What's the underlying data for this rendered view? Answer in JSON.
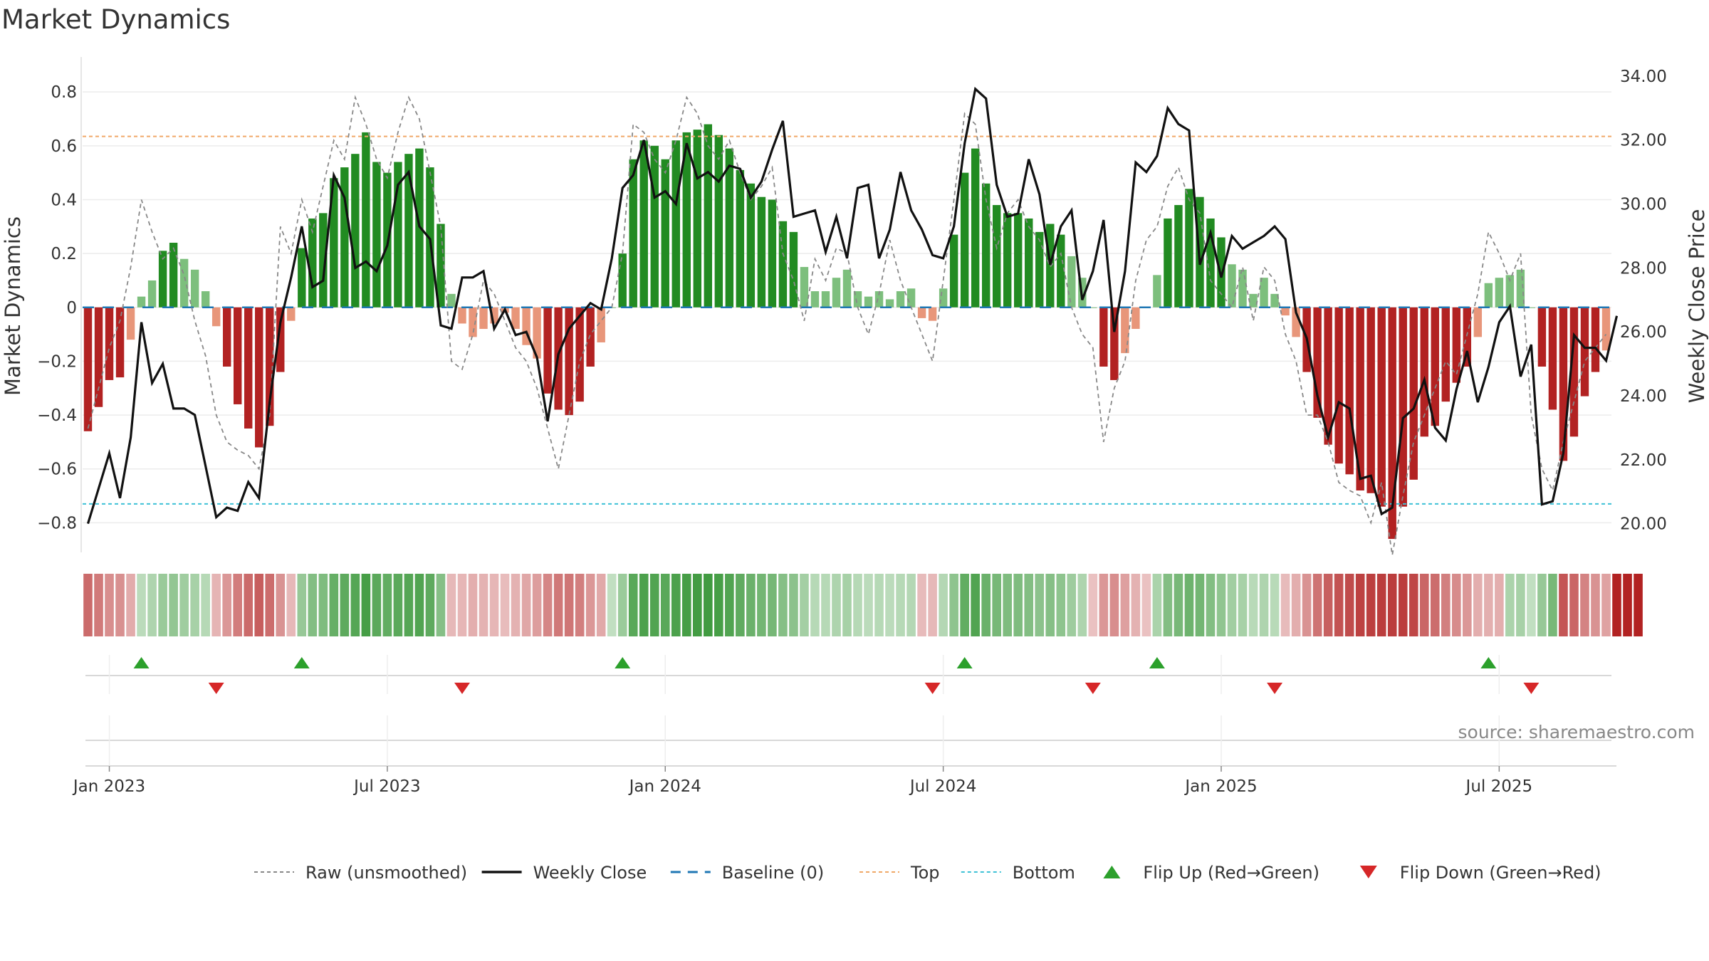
{
  "title": "Market Dynamics",
  "source": "source: sharemaestro.com",
  "colors": {
    "green_strong": "#228b22",
    "green_light": "#7dbf7d",
    "red_strong": "#b22222",
    "red_light": "#e8967a",
    "raw_line": "#888888",
    "close_line": "#111111",
    "baseline": "#1f77b4",
    "top_line": "#f0a868",
    "bottom_line": "#3fc1d6",
    "flip_up": "#2ca02c",
    "flip_down": "#d62728"
  },
  "chart_data": {
    "type": "bar",
    "title": "Market Dynamics",
    "ylabel": "Market Dynamics",
    "y2label": "Weekly Close Price",
    "ylim": [
      -0.91,
      0.93
    ],
    "y2lim": [
      19.1,
      34.6
    ],
    "yticks": [
      "0.8",
      "0.6",
      "0.4",
      "0.2",
      "0",
      "−0.2",
      "−0.4",
      "−0.6",
      "−0.8"
    ],
    "ytick_values": [
      0.8,
      0.6,
      0.4,
      0.2,
      0,
      -0.2,
      -0.4,
      -0.6,
      -0.8
    ],
    "y2ticks": [
      "34.00",
      "32.00",
      "30.00",
      "28.00",
      "26.00",
      "24.00",
      "22.00",
      "20.00"
    ],
    "y2tick_values": [
      34,
      32,
      30,
      28,
      26,
      24,
      22,
      20
    ],
    "xticks": [
      "Jan 2023",
      "Jul 2023",
      "Jan 2024",
      "Jul 2024",
      "Jan 2025",
      "Jul 2025"
    ],
    "xtick_weeks": [
      2,
      28,
      54,
      80,
      106,
      132
    ],
    "start_date": "2023-01-01",
    "end_date": "2025-09-07",
    "top_threshold": 0.635,
    "bottom_threshold": -0.73,
    "baseline": 0,
    "grid": true,
    "legend_position": "bottom",
    "legend": [
      "Raw (unsmoothed)",
      "Weekly Close",
      "Baseline (0)",
      "Top",
      "Bottom",
      "Flip Up (Red→Green)",
      "Flip Down (Green→Red)"
    ],
    "smoothed": [
      -0.46,
      -0.37,
      -0.27,
      -0.26,
      -0.12,
      0.04,
      0.1,
      0.21,
      0.24,
      0.18,
      0.14,
      0.06,
      -0.07,
      -0.22,
      -0.36,
      -0.45,
      -0.52,
      -0.44,
      -0.24,
      -0.05,
      0.22,
      0.33,
      0.35,
      0.48,
      0.52,
      0.57,
      0.65,
      0.54,
      0.5,
      0.54,
      0.57,
      0.59,
      0.52,
      0.31,
      0.05,
      -0.06,
      -0.11,
      -0.08,
      -0.06,
      -0.02,
      -0.08,
      -0.14,
      -0.19,
      -0.32,
      -0.38,
      -0.4,
      -0.35,
      -0.22,
      -0.13,
      0.0,
      0.2,
      0.55,
      0.62,
      0.6,
      0.55,
      0.62,
      0.65,
      0.66,
      0.68,
      0.64,
      0.59,
      0.51,
      0.46,
      0.41,
      0.4,
      0.32,
      0.28,
      0.15,
      0.06,
      0.06,
      0.11,
      0.14,
      0.06,
      0.04,
      0.06,
      0.03,
      0.06,
      0.07,
      -0.04,
      -0.05,
      0.07,
      0.27,
      0.5,
      0.59,
      0.46,
      0.38,
      0.35,
      0.35,
      0.33,
      0.28,
      0.31,
      0.27,
      0.19,
      0.11,
      0.0,
      -0.22,
      -0.27,
      -0.17,
      -0.08,
      0.0,
      0.12,
      0.33,
      0.38,
      0.44,
      0.41,
      0.33,
      0.26,
      0.16,
      0.14,
      0.05,
      0.11,
      0.05,
      -0.03,
      -0.11,
      -0.24,
      -0.41,
      -0.51,
      -0.58,
      -0.62,
      -0.68,
      -0.69,
      -0.74,
      -0.86,
      -0.74,
      -0.64,
      -0.48,
      -0.44,
      -0.35,
      -0.28,
      -0.22,
      -0.11,
      0.09,
      0.11,
      0.12,
      0.14,
      0.0,
      -0.22,
      -0.38,
      -0.57,
      -0.48,
      -0.33,
      -0.24,
      -0.16
    ],
    "raw": [
      -0.45,
      -0.3,
      -0.15,
      -0.05,
      0.15,
      0.4,
      0.28,
      0.18,
      0.22,
      0.12,
      -0.05,
      -0.18,
      -0.4,
      -0.5,
      -0.53,
      -0.55,
      -0.6,
      -0.4,
      0.3,
      0.2,
      0.4,
      0.28,
      0.45,
      0.62,
      0.55,
      0.78,
      0.68,
      0.55,
      0.48,
      0.65,
      0.78,
      0.7,
      0.5,
      0.3,
      -0.2,
      -0.23,
      -0.1,
      0.1,
      0.05,
      -0.05,
      -0.15,
      -0.2,
      -0.3,
      -0.45,
      -0.6,
      -0.4,
      -0.2,
      -0.1,
      -0.05,
      0.0,
      0.2,
      0.68,
      0.65,
      0.55,
      0.5,
      0.62,
      0.78,
      0.72,
      0.6,
      0.55,
      0.62,
      0.5,
      0.4,
      0.45,
      0.52,
      0.2,
      0.1,
      -0.05,
      0.18,
      0.1,
      0.22,
      0.2,
      0.0,
      -0.1,
      0.05,
      0.25,
      0.1,
      0.0,
      -0.1,
      -0.2,
      0.1,
      0.4,
      0.72,
      0.68,
      0.4,
      0.22,
      0.35,
      0.4,
      0.3,
      0.25,
      0.15,
      0.2,
      0.0,
      -0.1,
      -0.15,
      -0.5,
      -0.3,
      -0.2,
      0.1,
      0.25,
      0.3,
      0.45,
      0.52,
      0.4,
      0.35,
      0.1,
      0.05,
      0.0,
      0.15,
      -0.05,
      0.15,
      0.1,
      -0.1,
      -0.2,
      -0.4,
      -0.4,
      -0.5,
      -0.65,
      -0.68,
      -0.7,
      -0.8,
      -0.65,
      -0.92,
      -0.7,
      -0.5,
      -0.4,
      -0.3,
      -0.2,
      -0.25,
      -0.1,
      0.05,
      0.28,
      0.2,
      0.1,
      0.2,
      -0.4,
      -0.6,
      -0.68,
      -0.5,
      -0.35,
      -0.2,
      -0.15,
      -0.1
    ],
    "close": [
      20.0,
      21.1,
      22.2,
      20.8,
      22.7,
      26.3,
      24.4,
      25.0,
      23.6,
      23.6,
      23.4,
      21.8,
      20.2,
      20.5,
      20.4,
      21.3,
      20.8,
      23.8,
      26.3,
      27.7,
      29.3,
      27.4,
      27.6,
      30.9,
      30.2,
      28.0,
      28.2,
      27.9,
      28.7,
      30.6,
      31.0,
      29.3,
      28.9,
      26.2,
      26.1,
      27.7,
      27.7,
      27.9,
      26.1,
      26.7,
      25.9,
      26.0,
      25.2,
      23.2,
      25.3,
      26.1,
      26.5,
      26.9,
      26.7,
      28.3,
      30.5,
      30.9,
      32.0,
      30.2,
      30.4,
      30.0,
      31.9,
      30.8,
      31.0,
      30.7,
      31.2,
      31.1,
      30.2,
      30.7,
      31.7,
      32.6,
      29.6,
      29.7,
      29.8,
      28.5,
      29.6,
      28.3,
      30.5,
      30.6,
      28.3,
      29.2,
      31.0,
      29.8,
      29.2,
      28.4,
      28.3,
      29.3,
      31.9,
      33.6,
      33.3,
      30.6,
      29.6,
      29.7,
      31.4,
      30.3,
      28.1,
      29.3,
      29.8,
      27.0,
      27.9,
      29.5,
      26.0,
      27.9,
      31.3,
      31.0,
      31.5,
      33.0,
      32.5,
      32.3,
      28.1,
      29.1,
      27.7,
      29.0,
      28.6,
      28.8,
      29.0,
      29.3,
      28.9,
      26.6,
      25.8,
      24.0,
      22.7,
      23.8,
      23.6,
      21.4,
      21.5,
      20.3,
      20.5,
      23.3,
      23.6,
      24.5,
      23.0,
      22.6,
      24.2,
      25.4,
      23.8,
      24.9,
      26.3,
      26.8,
      24.6,
      25.6,
      20.6,
      20.7,
      22.2,
      25.9,
      25.5,
      25.5,
      25.1,
      26.5
    ],
    "regime_band": [
      "red",
      "red",
      "red",
      "red",
      "red",
      "green",
      "green",
      "green",
      "green",
      "green",
      "green",
      "green",
      "red",
      "red",
      "red",
      "red",
      "red",
      "red",
      "red",
      "red",
      "green",
      "green",
      "green",
      "green",
      "green",
      "green",
      "green",
      "green",
      "green",
      "green",
      "green",
      "green",
      "green",
      "green",
      "red",
      "red",
      "red",
      "red",
      "red",
      "red",
      "red",
      "red",
      "red",
      "red",
      "red",
      "red",
      "red",
      "red",
      "red",
      "green",
      "green",
      "green",
      "green",
      "green",
      "green",
      "green",
      "green",
      "green",
      "green",
      "green",
      "green",
      "green",
      "green",
      "green",
      "green",
      "green",
      "green",
      "green",
      "green",
      "green",
      "green",
      "green",
      "green",
      "green",
      "green",
      "green",
      "green",
      "green",
      "red",
      "red",
      "green",
      "green",
      "green",
      "green",
      "green",
      "green",
      "green",
      "green",
      "green",
      "green",
      "green",
      "green",
      "green",
      "green",
      "red",
      "red",
      "red",
      "red",
      "red",
      "red",
      "green",
      "green",
      "green",
      "green",
      "green",
      "green",
      "green",
      "green",
      "green",
      "green",
      "green",
      "green",
      "red",
      "red",
      "red",
      "red",
      "red",
      "red",
      "red",
      "red",
      "red",
      "red",
      "red",
      "red",
      "red",
      "red",
      "red",
      "red",
      "red",
      "red",
      "red",
      "red",
      "red",
      "green",
      "green",
      "green",
      "green",
      "green",
      "red",
      "red",
      "red",
      "red",
      "red",
      "red",
      "red",
      "red"
    ],
    "flip_up_weeks": [
      5,
      20,
      50,
      82,
      100,
      131
    ],
    "flip_down_weeks": [
      12,
      35,
      79,
      94,
      111,
      135
    ]
  }
}
